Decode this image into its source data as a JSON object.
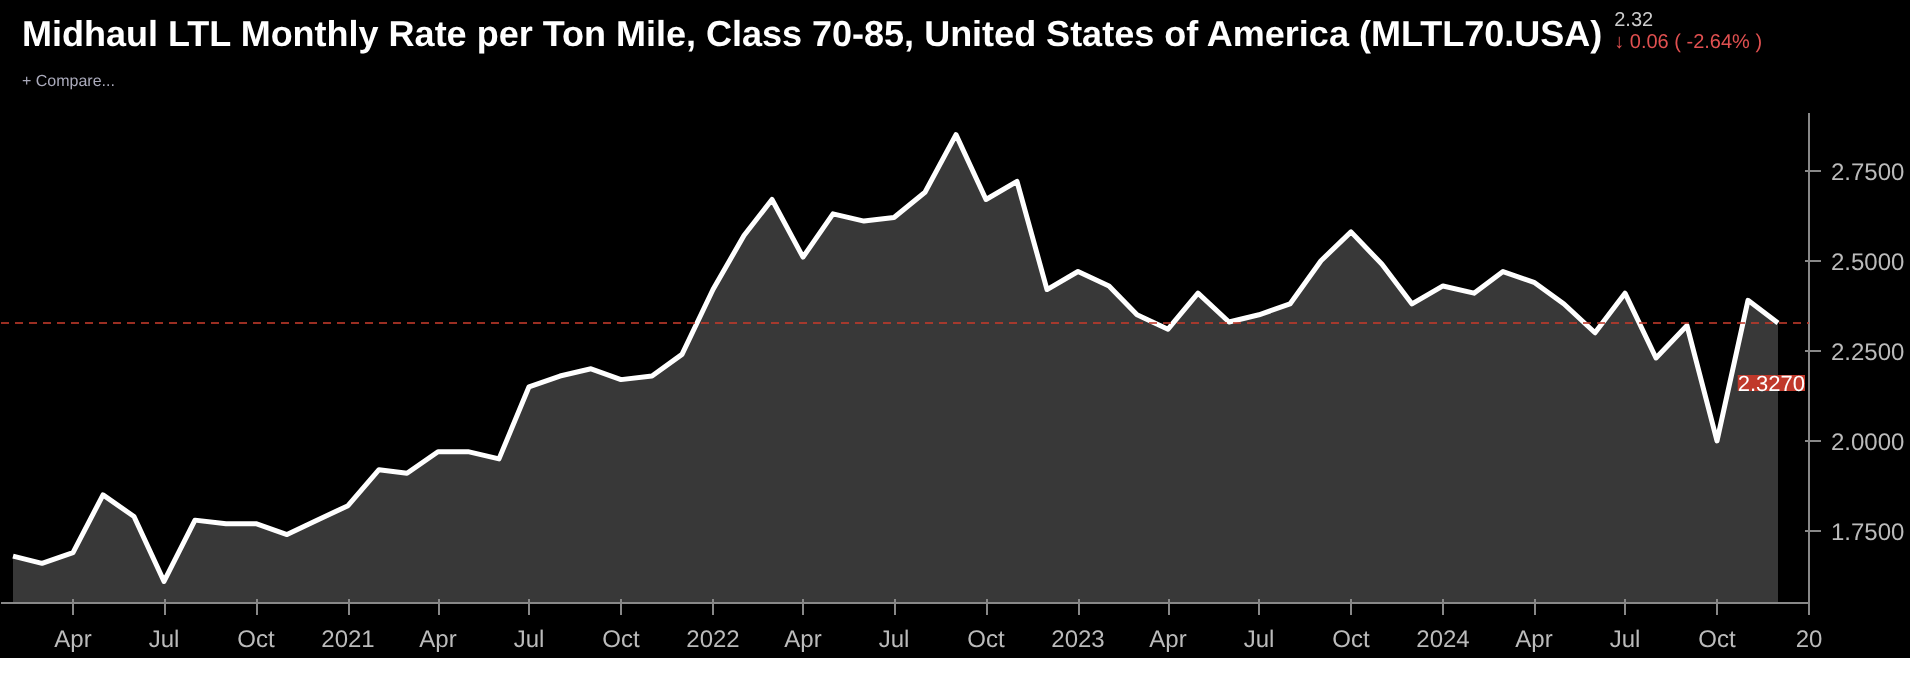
{
  "chart_data": {
    "type": "area",
    "title": "Midhaul LTL Monthly Rate per Ton Mile, Class 70-85, United States of America (MLTL70.USA)",
    "annotations": [
      "2.32",
      "↓ 0.06 ( -2.64% )",
      "+ Compare..."
    ],
    "x": [
      "2020-02",
      "2020-03",
      "2020-04",
      "2020-05",
      "2020-06",
      "2020-07",
      "2020-08",
      "2020-09",
      "2020-10",
      "2020-11",
      "2020-12",
      "2021-01",
      "2021-02",
      "2021-03",
      "2021-04",
      "2021-05",
      "2021-06",
      "2021-07",
      "2021-08",
      "2021-09",
      "2021-10",
      "2021-11",
      "2021-12",
      "2022-01",
      "2022-02",
      "2022-03",
      "2022-04",
      "2022-05",
      "2022-06",
      "2022-07",
      "2022-08",
      "2022-09",
      "2022-10",
      "2022-11",
      "2022-12",
      "2023-01",
      "2023-02",
      "2023-03",
      "2023-04",
      "2023-05",
      "2023-06",
      "2023-07",
      "2023-08",
      "2023-09",
      "2023-10",
      "2023-11",
      "2023-12",
      "2024-01",
      "2024-02",
      "2024-03",
      "2024-04",
      "2024-05",
      "2024-06",
      "2024-07",
      "2024-08",
      "2024-09",
      "2024-10",
      "2024-11",
      "2024-12"
    ],
    "series": [
      {
        "color": "#ffffff",
        "values": [
          1.68,
          1.66,
          1.69,
          1.85,
          1.79,
          1.61,
          1.78,
          1.77,
          1.77,
          1.74,
          1.78,
          1.82,
          1.92,
          1.91,
          1.97,
          1.97,
          1.95,
          2.15,
          2.18,
          2.2,
          2.17,
          2.18,
          2.24,
          2.42,
          2.57,
          2.67,
          2.51,
          2.63,
          2.61,
          2.62,
          2.69,
          2.85,
          2.67,
          2.72,
          2.42,
          2.47,
          2.43,
          2.35,
          2.31,
          2.41,
          2.33,
          2.35,
          2.38,
          2.5,
          2.58,
          2.49,
          2.38,
          2.43,
          2.41,
          2.47,
          2.44,
          2.38,
          2.3,
          2.41,
          2.23,
          2.32,
          2.0,
          2.39,
          2.327
        ]
      }
    ],
    "xlim": [
      "2020-01-20",
      "2025-01-01"
    ],
    "xticks": [
      {
        "value": "2020-04",
        "label": "Apr"
      },
      {
        "value": "2020-07",
        "label": "Jul"
      },
      {
        "value": "2020-10",
        "label": "Oct"
      },
      {
        "value": "2021-01",
        "label": "2021"
      },
      {
        "value": "2021-04",
        "label": "Apr"
      },
      {
        "value": "2021-07",
        "label": "Jul"
      },
      {
        "value": "2021-10",
        "label": "Oct"
      },
      {
        "value": "2022-01",
        "label": "2022"
      },
      {
        "value": "2022-04",
        "label": "Apr"
      },
      {
        "value": "2022-07",
        "label": "Jul"
      },
      {
        "value": "2022-10",
        "label": "Oct"
      },
      {
        "value": "2023-01",
        "label": "2023"
      },
      {
        "value": "2023-04",
        "label": "Apr"
      },
      {
        "value": "2023-07",
        "label": "Jul"
      },
      {
        "value": "2023-10",
        "label": "Oct"
      },
      {
        "value": "2024-01",
        "label": "2024"
      },
      {
        "value": "2024-04",
        "label": "Apr"
      },
      {
        "value": "2024-07",
        "label": "Jul"
      },
      {
        "value": "2024-10",
        "label": "Oct"
      },
      {
        "value": "2025-01",
        "label": "20"
      }
    ],
    "ylim": [
      1.55,
      2.91
    ],
    "yticks": [
      {
        "value": 1.75,
        "label": "1.7500"
      },
      {
        "value": 2.0,
        "label": "2.0000"
      },
      {
        "value": 2.25,
        "label": "2.2500"
      },
      {
        "value": 2.5,
        "label": "2.5000"
      },
      {
        "value": 2.75,
        "label": "2.7500"
      }
    ],
    "ref_lines": [
      {
        "axis": "y",
        "value": 2.327,
        "label": "2.3270",
        "color": "#c0392b",
        "line_style": "dashed"
      }
    ],
    "grid": false
  }
}
